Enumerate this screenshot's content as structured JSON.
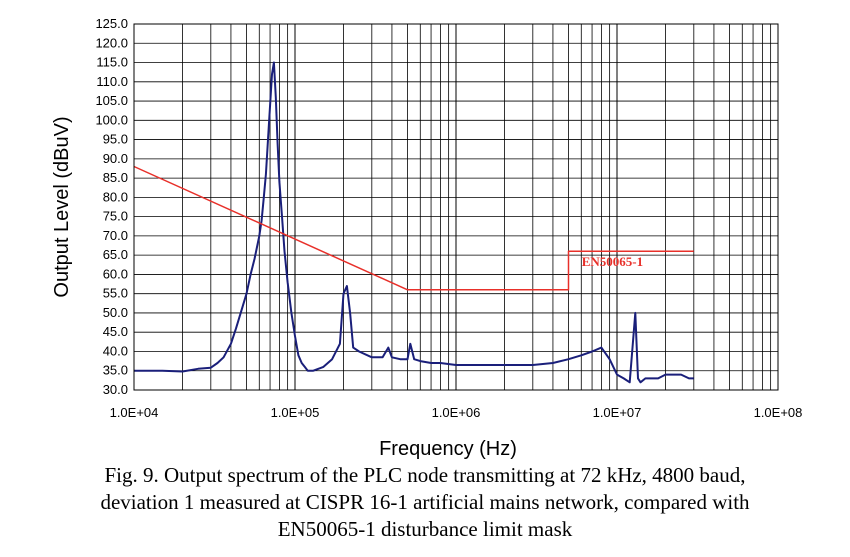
{
  "chart_data": {
    "type": "line",
    "xlabel": "Frequency (Hz)",
    "ylabel": "Output Level (dBuV)",
    "x_scale": "log",
    "xlim": [
      10000,
      100000000
    ],
    "ylim": [
      30,
      125
    ],
    "grid": true,
    "x_tick_labels": [
      "1.0E+04",
      "1.0E+05",
      "1.0E+06",
      "1.0E+07",
      "1.0E+08"
    ],
    "y_tick_labels": [
      "30.0",
      "35.0",
      "40.0",
      "45.0",
      "50.0",
      "55.0",
      "60.0",
      "65.0",
      "70.0",
      "75.0",
      "80.0",
      "85.0",
      "90.0",
      "95.0",
      "100.0",
      "105.0",
      "110.0",
      "115.0",
      "120.0",
      "125.0"
    ],
    "series": [
      {
        "name": "",
        "color": "#1a1f7a",
        "x": [
          10000,
          15000,
          20000,
          25000,
          30000,
          33000,
          36000,
          40000,
          43000,
          46000,
          50000,
          53000,
          56000,
          58000,
          60000,
          62000,
          64000,
          66000,
          68000,
          70000,
          72000,
          74000,
          76000,
          78000,
          80000,
          83000,
          86000,
          90000,
          95000,
          100000,
          105000,
          110000,
          115000,
          120000,
          130000,
          150000,
          170000,
          190000,
          200000,
          210000,
          220000,
          230000,
          250000,
          300000,
          350000,
          380000,
          400000,
          450000,
          500000,
          520000,
          550000,
          600000,
          700000,
          800000,
          1000000,
          1500000,
          2000000,
          3000000,
          4000000,
          5000000,
          6000000,
          7000000,
          8000000,
          9000000,
          10000000,
          11000000,
          12000000,
          13000000,
          13500000,
          14000000,
          15000000,
          18000000,
          20000000,
          25000000,
          28000000,
          30000000
        ],
        "y": [
          35,
          35,
          34.8,
          35.5,
          35.8,
          37,
          38.5,
          42,
          46,
          50,
          55,
          60,
          64,
          67,
          70,
          74,
          80,
          86,
          95,
          104,
          112,
          115,
          106,
          94,
          84,
          75,
          66,
          58,
          50,
          44,
          39,
          37,
          36,
          35,
          35,
          36,
          38,
          42,
          55,
          57,
          50,
          41,
          40,
          38.5,
          38.5,
          41,
          38.5,
          38,
          38,
          42,
          38,
          37.5,
          37,
          37,
          36.5,
          36.5,
          36.5,
          36.5,
          37,
          38,
          39,
          40,
          41,
          38,
          34,
          33,
          32,
          50,
          33,
          32,
          33,
          33,
          34,
          34,
          33,
          33
        ]
      },
      {
        "name": "",
        "color": "#e8302a",
        "x": [
          10000,
          500000,
          500000,
          5000000,
          5000000,
          30000000
        ],
        "y": [
          88,
          56,
          56,
          56,
          66,
          66
        ]
      }
    ],
    "annotations": [
      {
        "text": "EN50065-1",
        "x": 12000000,
        "y": 63.5
      }
    ]
  },
  "caption": {
    "line1": "Fig. 9. Output spectrum of the PLC node transmitting at 72 kHz, 4800 baud,",
    "line2": "deviation 1 measured at CISPR 16-1 artificial mains network, compared with",
    "line3": "EN50065-1 disturbance limit mask"
  }
}
